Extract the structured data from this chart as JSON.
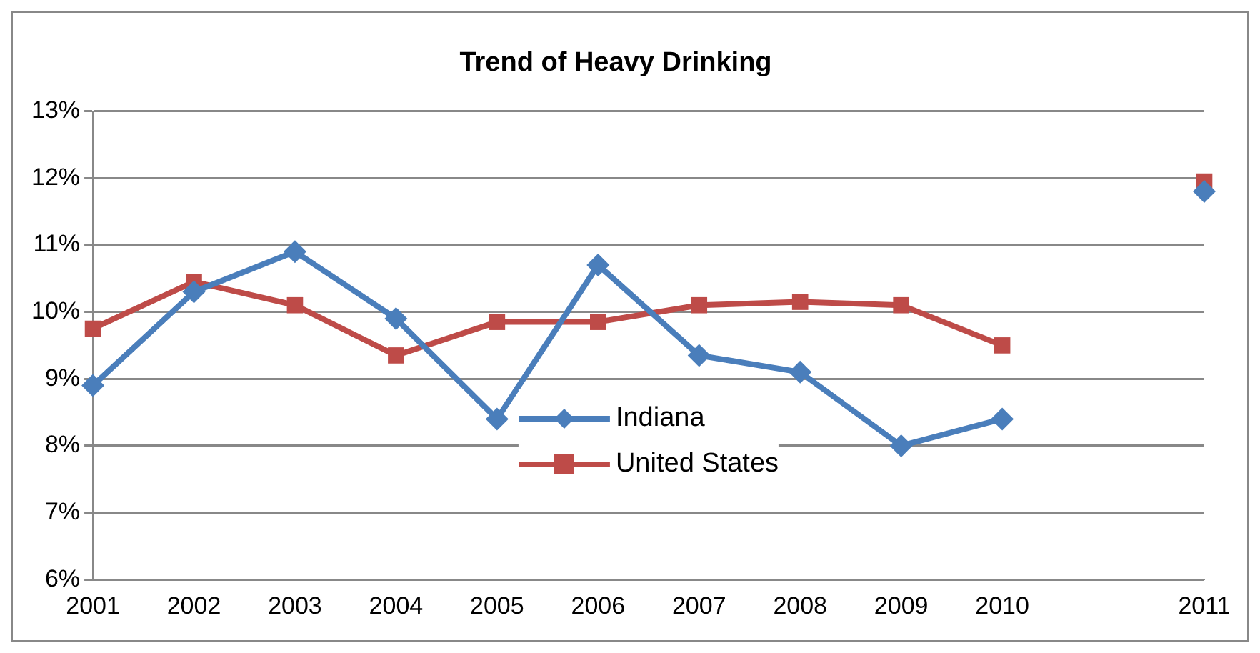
{
  "chart_data": {
    "type": "line",
    "title": "Trend of Heavy Drinking",
    "categories": [
      "2001",
      "2002",
      "2003",
      "2004",
      "2005",
      "2006",
      "2007",
      "2008",
      "2009",
      "2010",
      null,
      "2011"
    ],
    "series": [
      {
        "name": "Indiana",
        "color": "#4a7ebb",
        "marker": "diamond",
        "values": [
          8.9,
          10.3,
          10.9,
          9.9,
          8.4,
          10.7,
          9.35,
          9.1,
          8.0,
          8.4,
          null,
          11.8
        ]
      },
      {
        "name": "United States",
        "color": "#be4b48",
        "marker": "square",
        "values": [
          9.75,
          10.45,
          10.1,
          9.35,
          9.85,
          9.85,
          10.1,
          10.15,
          10.1,
          9.5,
          null,
          11.95
        ]
      }
    ],
    "ylim": [
      6,
      13
    ],
    "yticks": [
      {
        "value": 6,
        "label": "6%"
      },
      {
        "value": 7,
        "label": "7%"
      },
      {
        "value": 8,
        "label": "8%"
      },
      {
        "value": 9,
        "label": "9%"
      },
      {
        "value": 10,
        "label": "10%"
      },
      {
        "value": 11,
        "label": "11%"
      },
      {
        "value": 12,
        "label": "12%"
      },
      {
        "value": 13,
        "label": "13%"
      }
    ],
    "grid": "y",
    "legend": "bottom",
    "line_style": "solid"
  }
}
